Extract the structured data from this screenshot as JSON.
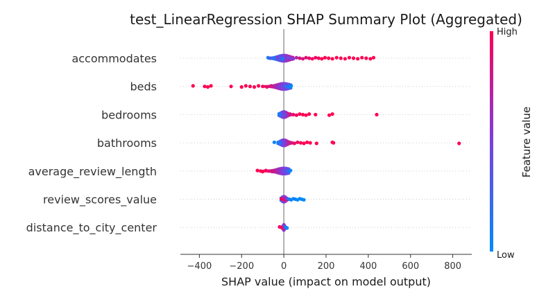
{
  "chart_data": {
    "type": "scatter",
    "title": "test_LinearRegression SHAP Summary Plot (Aggregated)",
    "xlabel": "SHAP value (impact on model output)",
    "xlim": [
      -490,
      890
    ],
    "xticks": [
      -400,
      -200,
      0,
      200,
      400,
      600,
      800
    ],
    "xtick_labels": [
      "−400",
      "−200",
      "0",
      "200",
      "400",
      "600",
      "800"
    ],
    "colorbar": {
      "label": "Feature value",
      "high": "High",
      "low": "Low",
      "low_color": "#008bfb",
      "high_color": "#ff0052"
    },
    "features": [
      {
        "name": "accommodates",
        "dense": {
          "min": -72,
          "max": 45
        },
        "points": [
          [
            -75,
            0.1
          ],
          [
            -65,
            0.3
          ],
          [
            -40,
            0.2
          ],
          [
            -30,
            0.5
          ],
          [
            -15,
            0.3
          ],
          [
            -5,
            0.1
          ],
          [
            20,
            0.45
          ],
          [
            30,
            0.5
          ],
          [
            45,
            0.55
          ],
          [
            60,
            0.7
          ],
          [
            75,
            0.85
          ],
          [
            90,
            0.85
          ],
          [
            105,
            0.9
          ],
          [
            120,
            0.9
          ],
          [
            135,
            0.95
          ],
          [
            150,
            0.95
          ],
          [
            165,
            0.95
          ],
          [
            180,
            1
          ],
          [
            195,
            1
          ],
          [
            212,
            1
          ],
          [
            230,
            1
          ],
          [
            250,
            1
          ],
          [
            270,
            1
          ],
          [
            290,
            1
          ],
          [
            310,
            1
          ],
          [
            330,
            1
          ],
          [
            350,
            1
          ],
          [
            370,
            1
          ],
          [
            390,
            1
          ],
          [
            410,
            1
          ],
          [
            425,
            1
          ]
        ]
      },
      {
        "name": "beds",
        "dense": {
          "min": -90,
          "max": 35
        },
        "points": [
          [
            -430,
            1
          ],
          [
            -375,
            1
          ],
          [
            -360,
            1
          ],
          [
            -345,
            1
          ],
          [
            -250,
            1
          ],
          [
            -200,
            1
          ],
          [
            -180,
            1
          ],
          [
            -160,
            1
          ],
          [
            -140,
            1
          ],
          [
            -120,
            1
          ],
          [
            -100,
            0.95
          ],
          [
            -80,
            0.9
          ],
          [
            -60,
            0.8
          ],
          [
            -40,
            0.65
          ],
          [
            -20,
            0.5
          ],
          [
            -5,
            0.4
          ],
          [
            10,
            0.2
          ],
          [
            25,
            0.05
          ],
          [
            35,
            0.0
          ]
        ]
      },
      {
        "name": "bedrooms",
        "dense": {
          "min": -25,
          "max": 40
        },
        "points": [
          [
            -20,
            0.1
          ],
          [
            5,
            0.4
          ],
          [
            15,
            0.6
          ],
          [
            30,
            0.85
          ],
          [
            45,
            0.9
          ],
          [
            60,
            0.95
          ],
          [
            75,
            1
          ],
          [
            90,
            1
          ],
          [
            105,
            1
          ],
          [
            120,
            1
          ],
          [
            150,
            1
          ],
          [
            215,
            1
          ],
          [
            230,
            1
          ],
          [
            440,
            1
          ]
        ]
      },
      {
        "name": "bathrooms",
        "dense": {
          "min": -30,
          "max": 40
        },
        "points": [
          [
            -45,
            0.05
          ],
          [
            -20,
            0.1
          ],
          [
            5,
            0.5
          ],
          [
            20,
            0.7
          ],
          [
            35,
            0.85
          ],
          [
            50,
            0.9
          ],
          [
            65,
            0.95
          ],
          [
            80,
            1
          ],
          [
            95,
            1
          ],
          [
            110,
            1
          ],
          [
            125,
            1
          ],
          [
            155,
            1
          ],
          [
            230,
            1
          ],
          [
            235,
            1
          ],
          [
            830,
            1
          ]
        ]
      },
      {
        "name": "average_review_length",
        "dense": {
          "min": -100,
          "max": 25
        },
        "points": [
          [
            -125,
            1
          ],
          [
            -110,
            1
          ],
          [
            -100,
            1
          ],
          [
            -85,
            0.95
          ],
          [
            -70,
            0.9
          ],
          [
            -55,
            0.85
          ],
          [
            -40,
            0.75
          ],
          [
            -25,
            0.65
          ],
          [
            -10,
            0.5
          ],
          [
            5,
            0.4
          ],
          [
            15,
            0.3
          ],
          [
            25,
            0.15
          ],
          [
            32,
            0.05
          ]
        ]
      },
      {
        "name": "review_scores_value",
        "dense": {
          "min": -15,
          "max": 30
        },
        "points": [
          [
            -12,
            0.9
          ],
          [
            -5,
            0.95
          ],
          [
            5,
            0.85
          ],
          [
            15,
            0.4
          ],
          [
            25,
            0.1
          ],
          [
            35,
            0.05
          ],
          [
            45,
            0.0
          ],
          [
            55,
            0.05
          ],
          [
            65,
            0.0
          ],
          [
            75,
            0.0
          ],
          [
            85,
            0.0
          ],
          [
            95,
            0.0
          ]
        ]
      },
      {
        "name": "distance_to_city_center",
        "dense": {
          "min": -8,
          "max": 12
        },
        "points": [
          [
            -20,
            0.95
          ],
          [
            -12,
            1
          ],
          [
            -5,
            0.9
          ],
          [
            5,
            0.3
          ],
          [
            10,
            0.1
          ],
          [
            15,
            0.0
          ]
        ]
      }
    ]
  }
}
